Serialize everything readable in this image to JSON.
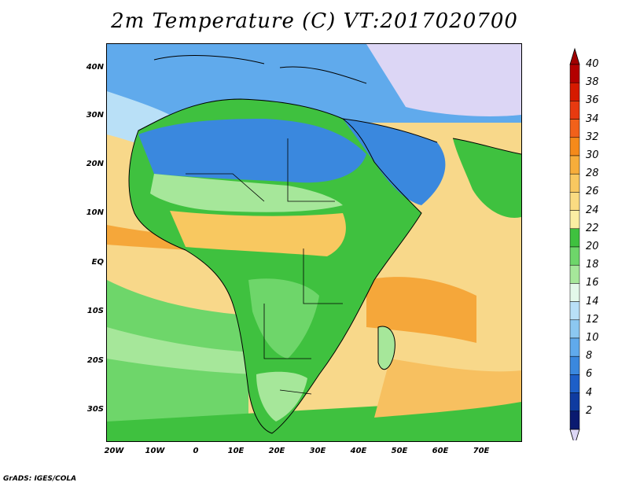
{
  "title": "2m Temperature (C) VT:2017020700",
  "credit": "GrADS: IGES/COLA",
  "map": {
    "variable": "2m Temperature",
    "units": "C",
    "valid_time": "2017020700",
    "lon_range": [
      -23,
      80
    ],
    "lat_range": [
      -37,
      46
    ],
    "lat_ticks": [
      "40N",
      "30N",
      "20N",
      "10N",
      "EQ",
      "10S",
      "20S",
      "30S"
    ],
    "lon_ticks": [
      "20W",
      "10W",
      "0",
      "10E",
      "20E",
      "30E",
      "40E",
      "50E",
      "60E",
      "70E"
    ]
  },
  "colorbar": {
    "labels": [
      "40",
      "38",
      "36",
      "34",
      "32",
      "30",
      "28",
      "26",
      "24",
      "22",
      "20",
      "18",
      "16",
      "14",
      "12",
      "10",
      "8",
      "6",
      "4",
      "2"
    ],
    "colors": [
      "#b30000",
      "#d61a00",
      "#e83a10",
      "#f2611a",
      "#f58a1a",
      "#f7ad3a",
      "#f8c860",
      "#fadb82",
      "#fbeea3",
      "#3fc13f",
      "#6ed66a",
      "#a6e79a",
      "#e3f8ea",
      "#b9e0f7",
      "#8cc8f1",
      "#60aaec",
      "#3a88de",
      "#1d5fc8",
      "#0f3ba0",
      "#0a1a70"
    ],
    "over_color": "#a00000",
    "under_color": "#dcd6f5"
  }
}
